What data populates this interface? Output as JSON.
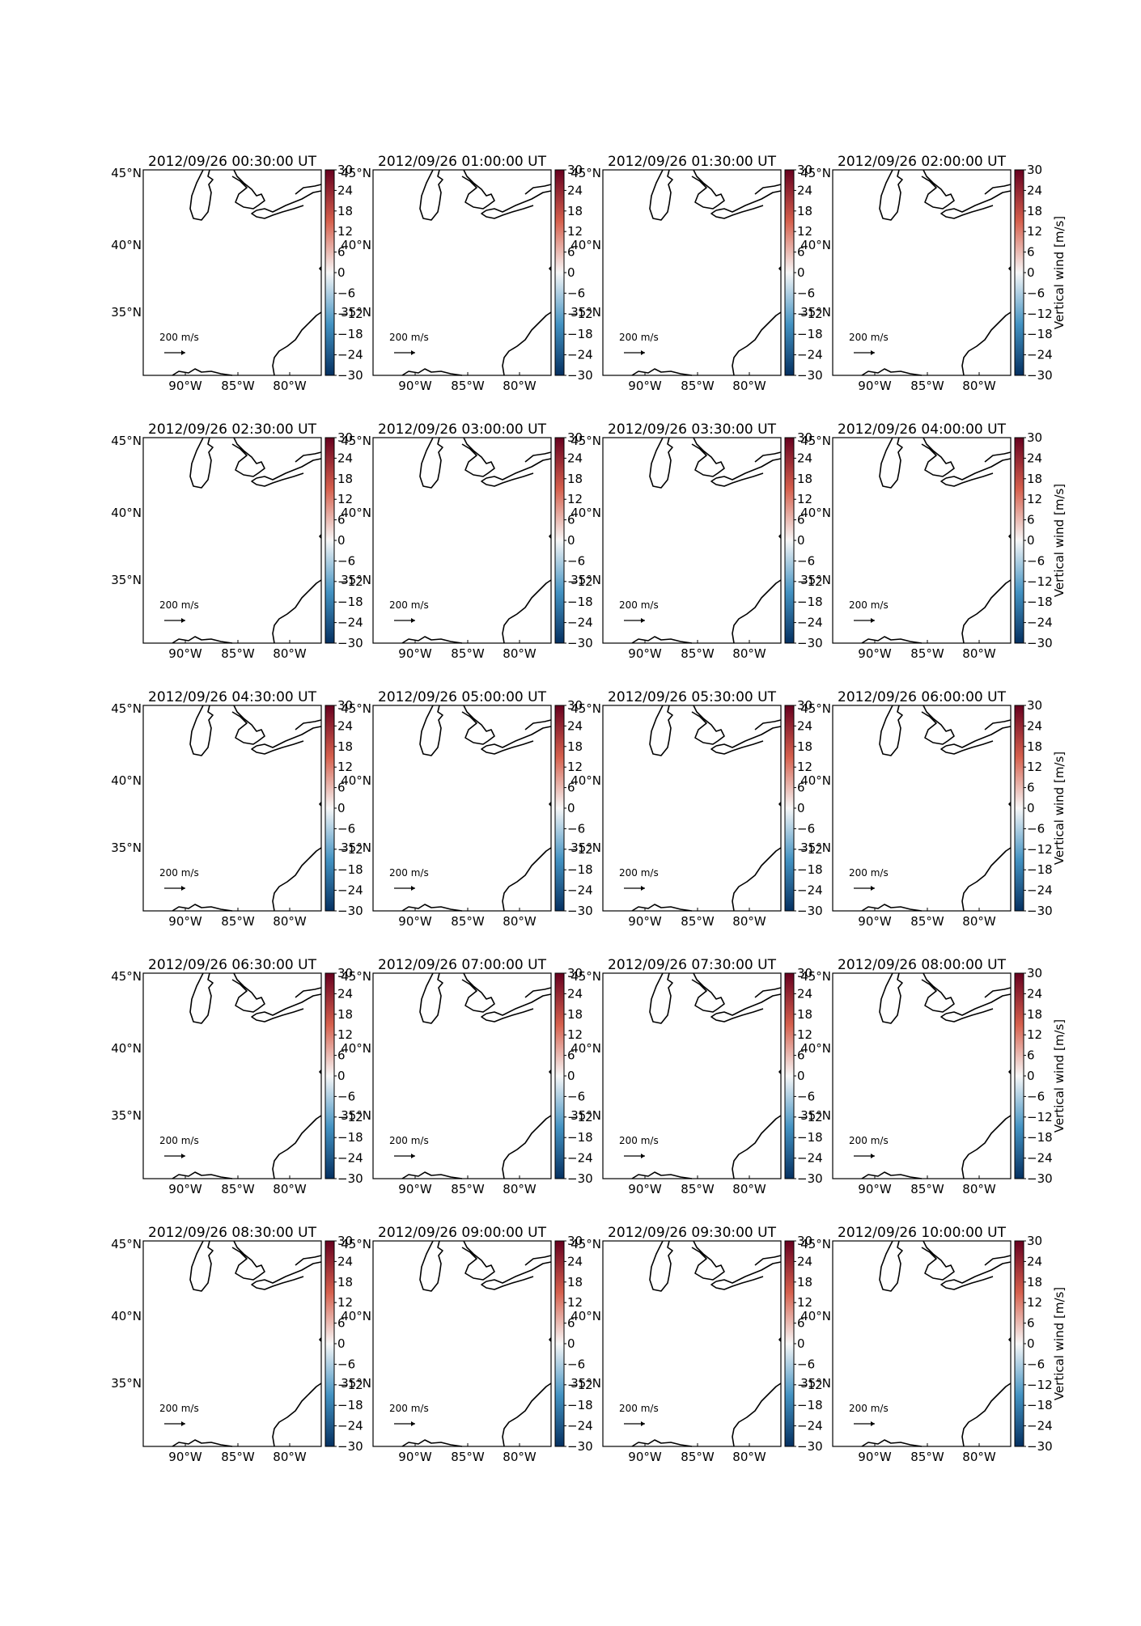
{
  "figure": {
    "colorbar": {
      "label": "Vertical wind [m/s]",
      "ticks": [
        "30",
        "24",
        "18",
        "12",
        "6",
        "0",
        "−6",
        "−12",
        "−18",
        "−24",
        "−30"
      ],
      "range": [
        -30,
        30
      ],
      "colors": {
        "top": "#67001f",
        "upper": "#d6604d",
        "middle": "#f7f7f7",
        "lower": "#4393c3",
        "bottom": "#053061"
      }
    },
    "quiver_key": {
      "text": "200 m/s"
    },
    "lon_ticks": [
      "90°W",
      "85°W",
      "80°W"
    ],
    "lat_ticks": [
      "45°N",
      "40°N",
      "35°N"
    ],
    "panels": [
      {
        "title": "2012/09/26 00:30:00 UT"
      },
      {
        "title": "2012/09/26 01:00:00 UT"
      },
      {
        "title": "2012/09/26 01:30:00 UT"
      },
      {
        "title": "2012/09/26 02:00:00 UT"
      },
      {
        "title": "2012/09/26 02:30:00 UT"
      },
      {
        "title": "2012/09/26 03:00:00 UT"
      },
      {
        "title": "2012/09/26 03:30:00 UT"
      },
      {
        "title": "2012/09/26 04:00:00 UT"
      },
      {
        "title": "2012/09/26 04:30:00 UT"
      },
      {
        "title": "2012/09/26 05:00:00 UT"
      },
      {
        "title": "2012/09/26 05:30:00 UT"
      },
      {
        "title": "2012/09/26 06:00:00 UT"
      },
      {
        "title": "2012/09/26 06:30:00 UT"
      },
      {
        "title": "2012/09/26 07:00:00 UT"
      },
      {
        "title": "2012/09/26 07:30:00 UT"
      },
      {
        "title": "2012/09/26 08:00:00 UT"
      },
      {
        "title": "2012/09/26 08:30:00 UT"
      },
      {
        "title": "2012/09/26 09:00:00 UT"
      },
      {
        "title": "2012/09/26 09:30:00 UT"
      },
      {
        "title": "2012/09/26 10:00:00 UT"
      }
    ]
  }
}
